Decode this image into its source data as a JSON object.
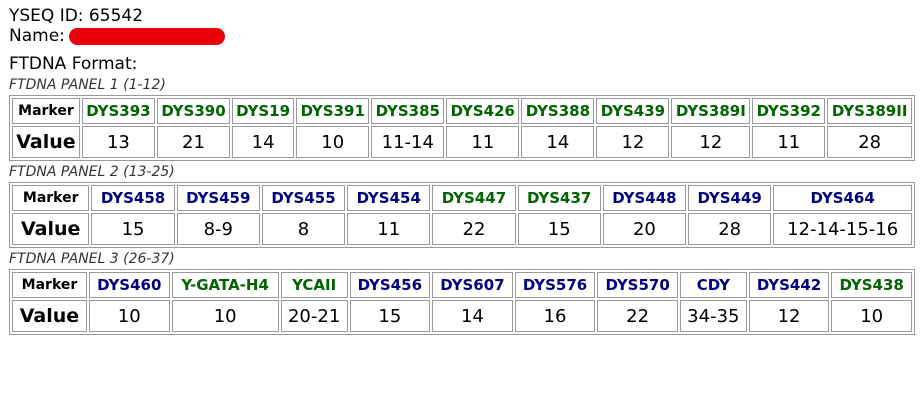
{
  "header": {
    "yseq_id": "YSEQ ID: 65542",
    "name_label": "Name:",
    "format": "FTDNA Format:"
  },
  "panels": [
    {
      "title": "FTDNA PANEL 1 (1-12)",
      "marker_label": "Marker",
      "value_label": "Value",
      "markers": [
        {
          "name": "DYS393",
          "color": "#006400",
          "value": "13"
        },
        {
          "name": "DYS390",
          "color": "#006400",
          "value": "21"
        },
        {
          "name": "DYS19",
          "color": "#006400",
          "value": "14"
        },
        {
          "name": "DYS391",
          "color": "#006400",
          "value": "10"
        },
        {
          "name": "DYS385",
          "color": "#006400",
          "value": "11-14"
        },
        {
          "name": "DYS426",
          "color": "#006400",
          "value": "11"
        },
        {
          "name": "DYS388",
          "color": "#006400",
          "value": "14"
        },
        {
          "name": "DYS439",
          "color": "#006400",
          "value": "12"
        },
        {
          "name": "DYS389I",
          "color": "#006400",
          "value": "12"
        },
        {
          "name": "DYS392",
          "color": "#006400",
          "value": "11"
        },
        {
          "name": "DYS389II",
          "color": "#006400",
          "value": "28"
        }
      ]
    },
    {
      "title": "FTDNA PANEL 2 (13-25)",
      "marker_label": "Marker",
      "value_label": "Value",
      "markers": [
        {
          "name": "DYS458",
          "color": "#000080",
          "value": "15"
        },
        {
          "name": "DYS459",
          "color": "#000080",
          "value": "8-9"
        },
        {
          "name": "DYS455",
          "color": "#000080",
          "value": "8"
        },
        {
          "name": "DYS454",
          "color": "#000080",
          "value": "11"
        },
        {
          "name": "DYS447",
          "color": "#006400",
          "value": "22"
        },
        {
          "name": "DYS437",
          "color": "#006400",
          "value": "15"
        },
        {
          "name": "DYS448",
          "color": "#000080",
          "value": "20"
        },
        {
          "name": "DYS449",
          "color": "#000080",
          "value": "28"
        },
        {
          "name": "DYS464",
          "color": "#000080",
          "value": "12-14-15-16"
        }
      ]
    },
    {
      "title": "FTDNA PANEL 3 (26-37)",
      "marker_label": "Marker",
      "value_label": "Value",
      "markers": [
        {
          "name": "DYS460",
          "color": "#000080",
          "value": "10"
        },
        {
          "name": "Y-GATA-H4",
          "color": "#006400",
          "value": "10"
        },
        {
          "name": "YCAII",
          "color": "#006400",
          "value": "20-21"
        },
        {
          "name": "DYS456",
          "color": "#000080",
          "value": "15"
        },
        {
          "name": "DYS607",
          "color": "#000080",
          "value": "14"
        },
        {
          "name": "DYS576",
          "color": "#000080",
          "value": "16"
        },
        {
          "name": "DYS570",
          "color": "#000080",
          "value": "22"
        },
        {
          "name": "CDY",
          "color": "#000080",
          "value": "34-35"
        },
        {
          "name": "DYS442",
          "color": "#000080",
          "value": "12"
        },
        {
          "name": "DYS438",
          "color": "#006400",
          "value": "10"
        }
      ]
    }
  ]
}
